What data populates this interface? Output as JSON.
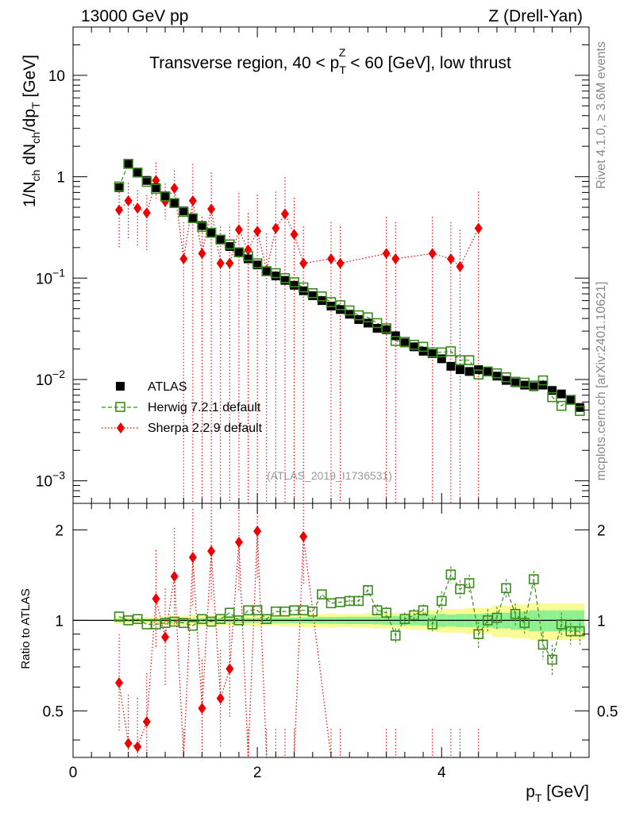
{
  "header": {
    "left": "13000 GeV pp",
    "right": "Z (Drell-Yan)"
  },
  "side": {
    "rivet": "Rivet 4.1.0, ≥ 3.6M events",
    "mcplots": "mcplots.cern.ch [arXiv:2401.10621]"
  },
  "chart_data": {
    "type": "scatter",
    "title": {
      "prefix": "Transverse region, 40 < p",
      "sub": "T",
      "sup": "Z",
      "suffix": " < 60 [GeV], low thrust"
    },
    "analysis_id": "(ATLAS_2019_I1736531)",
    "xlabel": {
      "main": "p",
      "sub": "T",
      "unit": " [GeV]"
    },
    "ylabel": {
      "pre": "1/N",
      "sub1": "ch",
      "mid": " dN",
      "sub2": "ch",
      "mid2": "/dp",
      "sub3": "T",
      "unit": " [GeV]"
    },
    "ratio_ylabel": "Ratio to ATLAS",
    "x_range": [
      0,
      5.6
    ],
    "y_range": [
      0.0006,
      30
    ],
    "y_scale": "log",
    "ratio_range": [
      0.35,
      2.45
    ],
    "x_ticks": [
      "0",
      "2",
      "4"
    ],
    "y_ticks": [
      {
        "v": 10,
        "label": "10"
      },
      {
        "v": 1,
        "label": "1"
      },
      {
        "v": 0.1,
        "label": "10",
        "exp": "−1"
      },
      {
        "v": 0.01,
        "label": "10",
        "exp": "−2"
      },
      {
        "v": 0.001,
        "label": "10",
        "exp": "−3"
      }
    ],
    "ratio_ticks": [
      {
        "v": 0.5,
        "label": "0.5"
      },
      {
        "v": 1,
        "label": "1"
      },
      {
        "v": 2,
        "label": "2"
      }
    ],
    "legend": {
      "position": "lower-left",
      "entries": [
        "ATLAS",
        "Herwig 7.2.1 default",
        "Sherpa 2.2.9 default"
      ]
    },
    "colors": {
      "data": "#000000",
      "herwig": "#3a8a1e",
      "sherpa": "#ee0000",
      "band_inner": "#8ef08e",
      "band_outer": "#fafa96"
    },
    "x": [
      0.5,
      0.6,
      0.7,
      0.8,
      0.9,
      1.0,
      1.1,
      1.2,
      1.3,
      1.4,
      1.5,
      1.6,
      1.7,
      1.8,
      1.9,
      2.0,
      2.1,
      2.2,
      2.3,
      2.4,
      2.5,
      2.6,
      2.7,
      2.8,
      2.9,
      3.0,
      3.1,
      3.2,
      3.3,
      3.4,
      3.5,
      3.6,
      3.7,
      3.8,
      3.9,
      4.0,
      4.1,
      4.2,
      4.3,
      4.4,
      4.5,
      4.6,
      4.7,
      4.8,
      4.9,
      5.0,
      5.1,
      5.2,
      5.3,
      5.4,
      5.5
    ],
    "series": [
      {
        "name": "ATLAS",
        "values": [
          0.78,
          1.33,
          1.1,
          0.92,
          0.78,
          0.65,
          0.55,
          0.46,
          0.39,
          0.33,
          0.28,
          0.24,
          0.205,
          0.18,
          0.155,
          0.135,
          0.118,
          0.105,
          0.095,
          0.085,
          0.075,
          0.067,
          0.06,
          0.053,
          0.049,
          0.044,
          0.039,
          0.036,
          0.032,
          0.031,
          0.027,
          0.023,
          0.021,
          0.019,
          0.018,
          0.016,
          0.0135,
          0.0125,
          0.012,
          0.0125,
          0.012,
          0.0108,
          0.0098,
          0.0093,
          0.0088,
          0.0085,
          0.0088,
          0.0078,
          0.0072,
          0.0063,
          0.0053
        ]
      },
      {
        "name": "Herwig 7.2.1 default",
        "values": [
          0.8,
          1.34,
          1.1,
          0.89,
          0.76,
          0.64,
          0.55,
          0.45,
          0.39,
          0.32,
          0.28,
          0.24,
          0.215,
          0.18,
          0.165,
          0.14,
          0.117,
          0.112,
          0.1,
          0.091,
          0.081,
          0.071,
          0.066,
          0.058,
          0.054,
          0.048,
          0.043,
          0.041,
          0.036,
          0.032,
          0.024,
          0.0235,
          0.022,
          0.021,
          0.0185,
          0.0185,
          0.019,
          0.0155,
          0.0155,
          0.0112,
          0.012,
          0.0115,
          0.0105,
          0.0095,
          0.0093,
          0.0087,
          0.0098,
          0.0067,
          0.0055,
          0.0063,
          0.0049
        ],
        "ratio": [
          1.03,
          1.0,
          1.01,
          0.97,
          0.97,
          0.98,
          0.99,
          0.98,
          0.96,
          1.01,
          0.99,
          1.01,
          1.06,
          1.0,
          1.08,
          1.08,
          1.01,
          1.07,
          1.07,
          1.08,
          1.08,
          1.07,
          1.22,
          1.14,
          1.15,
          1.16,
          1.16,
          1.26,
          1.08,
          1.06,
          0.89,
          1.01,
          1.04,
          1.08,
          0.97,
          1.16,
          1.42,
          1.27,
          1.33,
          0.9,
          1.0,
          1.02,
          1.28,
          1.05,
          0.98,
          1.37,
          0.83,
          0.74,
          0.97,
          0.92,
          0.92
        ]
      },
      {
        "name": "Sherpa 2.2.9 default",
        "x": [
          0.5,
          0.6,
          0.7,
          0.8,
          0.9,
          1.0,
          1.1,
          1.2,
          1.3,
          1.4,
          1.5,
          1.6,
          1.7,
          1.8,
          1.9,
          2.0,
          2.1,
          2.2,
          2.3,
          2.4,
          2.5,
          2.8,
          2.9,
          3.4,
          3.5,
          3.9,
          4.1,
          4.2,
          4.4
        ],
        "values": [
          0.47,
          0.58,
          0.49,
          0.44,
          0.92,
          0.57,
          0.77,
          0.155,
          0.58,
          0.175,
          0.48,
          0.14,
          0.14,
          0.3,
          0.19,
          0.29,
          0.12,
          0.31,
          0.43,
          0.27,
          0.14,
          0.155,
          0.14,
          0.175,
          0.155,
          0.175,
          0.155,
          0.13,
          0.31
        ],
        "ratio": [
          0.62,
          0.39,
          0.38,
          0.46,
          1.18,
          0.88,
          1.4,
          0.3,
          1.62,
          0.51,
          1.7,
          0.55,
          0.69,
          1.82,
          0.3,
          1.98,
          0.3,
          0.3,
          0.3,
          0.3,
          1.9,
          0.3,
          0.3,
          0.3,
          0.3,
          0.3,
          0.3,
          0.3,
          0.3
        ]
      }
    ],
    "ratio_band": {
      "x": [
        0.45,
        0.55,
        0.65,
        0.75,
        0.85,
        0.95,
        1.05,
        1.15,
        1.25,
        1.35,
        1.45,
        1.55,
        1.65,
        1.75,
        1.85,
        1.95,
        2.05,
        2.15,
        2.25,
        2.35,
        2.45,
        2.55,
        2.65,
        2.75,
        2.85,
        2.95,
        3.05,
        3.15,
        3.25,
        3.35,
        3.45,
        3.55,
        3.65,
        3.75,
        3.85,
        3.95,
        4.05,
        4.15,
        4.25,
        4.35,
        4.45,
        4.55,
        4.65,
        4.75,
        4.85,
        4.95,
        5.05,
        5.15,
        5.25,
        5.35,
        5.45,
        5.55
      ],
      "inner": [
        0.012,
        0.012,
        0.012,
        0.012,
        0.012,
        0.012,
        0.014,
        0.015,
        0.015,
        0.015,
        0.016,
        0.016,
        0.017,
        0.018,
        0.018,
        0.018,
        0.019,
        0.02,
        0.02,
        0.021,
        0.022,
        0.023,
        0.025,
        0.026,
        0.027,
        0.028,
        0.028,
        0.028,
        0.03,
        0.032,
        0.034,
        0.034,
        0.036,
        0.04,
        0.045,
        0.05,
        0.045,
        0.05,
        0.05,
        0.05,
        0.055,
        0.06,
        0.06,
        0.07,
        0.07,
        0.08,
        0.08,
        0.08,
        0.08,
        0.08,
        0.08,
        0.08
      ],
      "outer": [
        0.025,
        0.025,
        0.025,
        0.026,
        0.028,
        0.03,
        0.035,
        0.035,
        0.04,
        0.04,
        0.04,
        0.035,
        0.04,
        0.04,
        0.04,
        0.045,
        0.04,
        0.04,
        0.045,
        0.045,
        0.05,
        0.05,
        0.05,
        0.055,
        0.05,
        0.05,
        0.05,
        0.055,
        0.06,
        0.06,
        0.06,
        0.06,
        0.07,
        0.07,
        0.08,
        0.09,
        0.09,
        0.09,
        0.1,
        0.1,
        0.1,
        0.12,
        0.12,
        0.13,
        0.13,
        0.14,
        0.14,
        0.14,
        0.14,
        0.14,
        0.14,
        0.14
      ]
    }
  }
}
